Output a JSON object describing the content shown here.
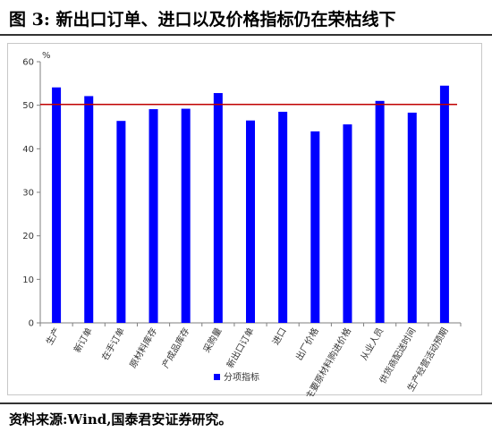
{
  "figure": {
    "title": "图 3:  新出口订单、进口以及价格指标仍在荣枯线下",
    "source": "资料来源:Wind,国泰君安证券研究。"
  },
  "chart_data": {
    "type": "bar",
    "categories": [
      "生产",
      "新订单",
      "在手订单",
      "原材料库存",
      "产成品库存",
      "采购量",
      "新出口订单",
      "进口",
      "出厂价格",
      "主要原材料购进价格",
      "从业人员",
      "供货商配送时间",
      "生产经营活动预期"
    ],
    "series": [
      {
        "name": "分项指标",
        "values": [
          54.1,
          52.1,
          46.4,
          49.1,
          49.2,
          52.8,
          46.5,
          48.5,
          44.0,
          45.6,
          51.0,
          48.3,
          54.5
        ]
      }
    ],
    "reference_line": 50.2,
    "ylabel": "%",
    "ylim": [
      0,
      60
    ],
    "yticks": [
      0,
      10,
      20,
      30,
      40,
      50,
      60
    ],
    "legend_position": "bottom",
    "colors": {
      "bar": "#0000ff",
      "reference_line": "#c00000",
      "axis": "#7f7f7f"
    }
  }
}
